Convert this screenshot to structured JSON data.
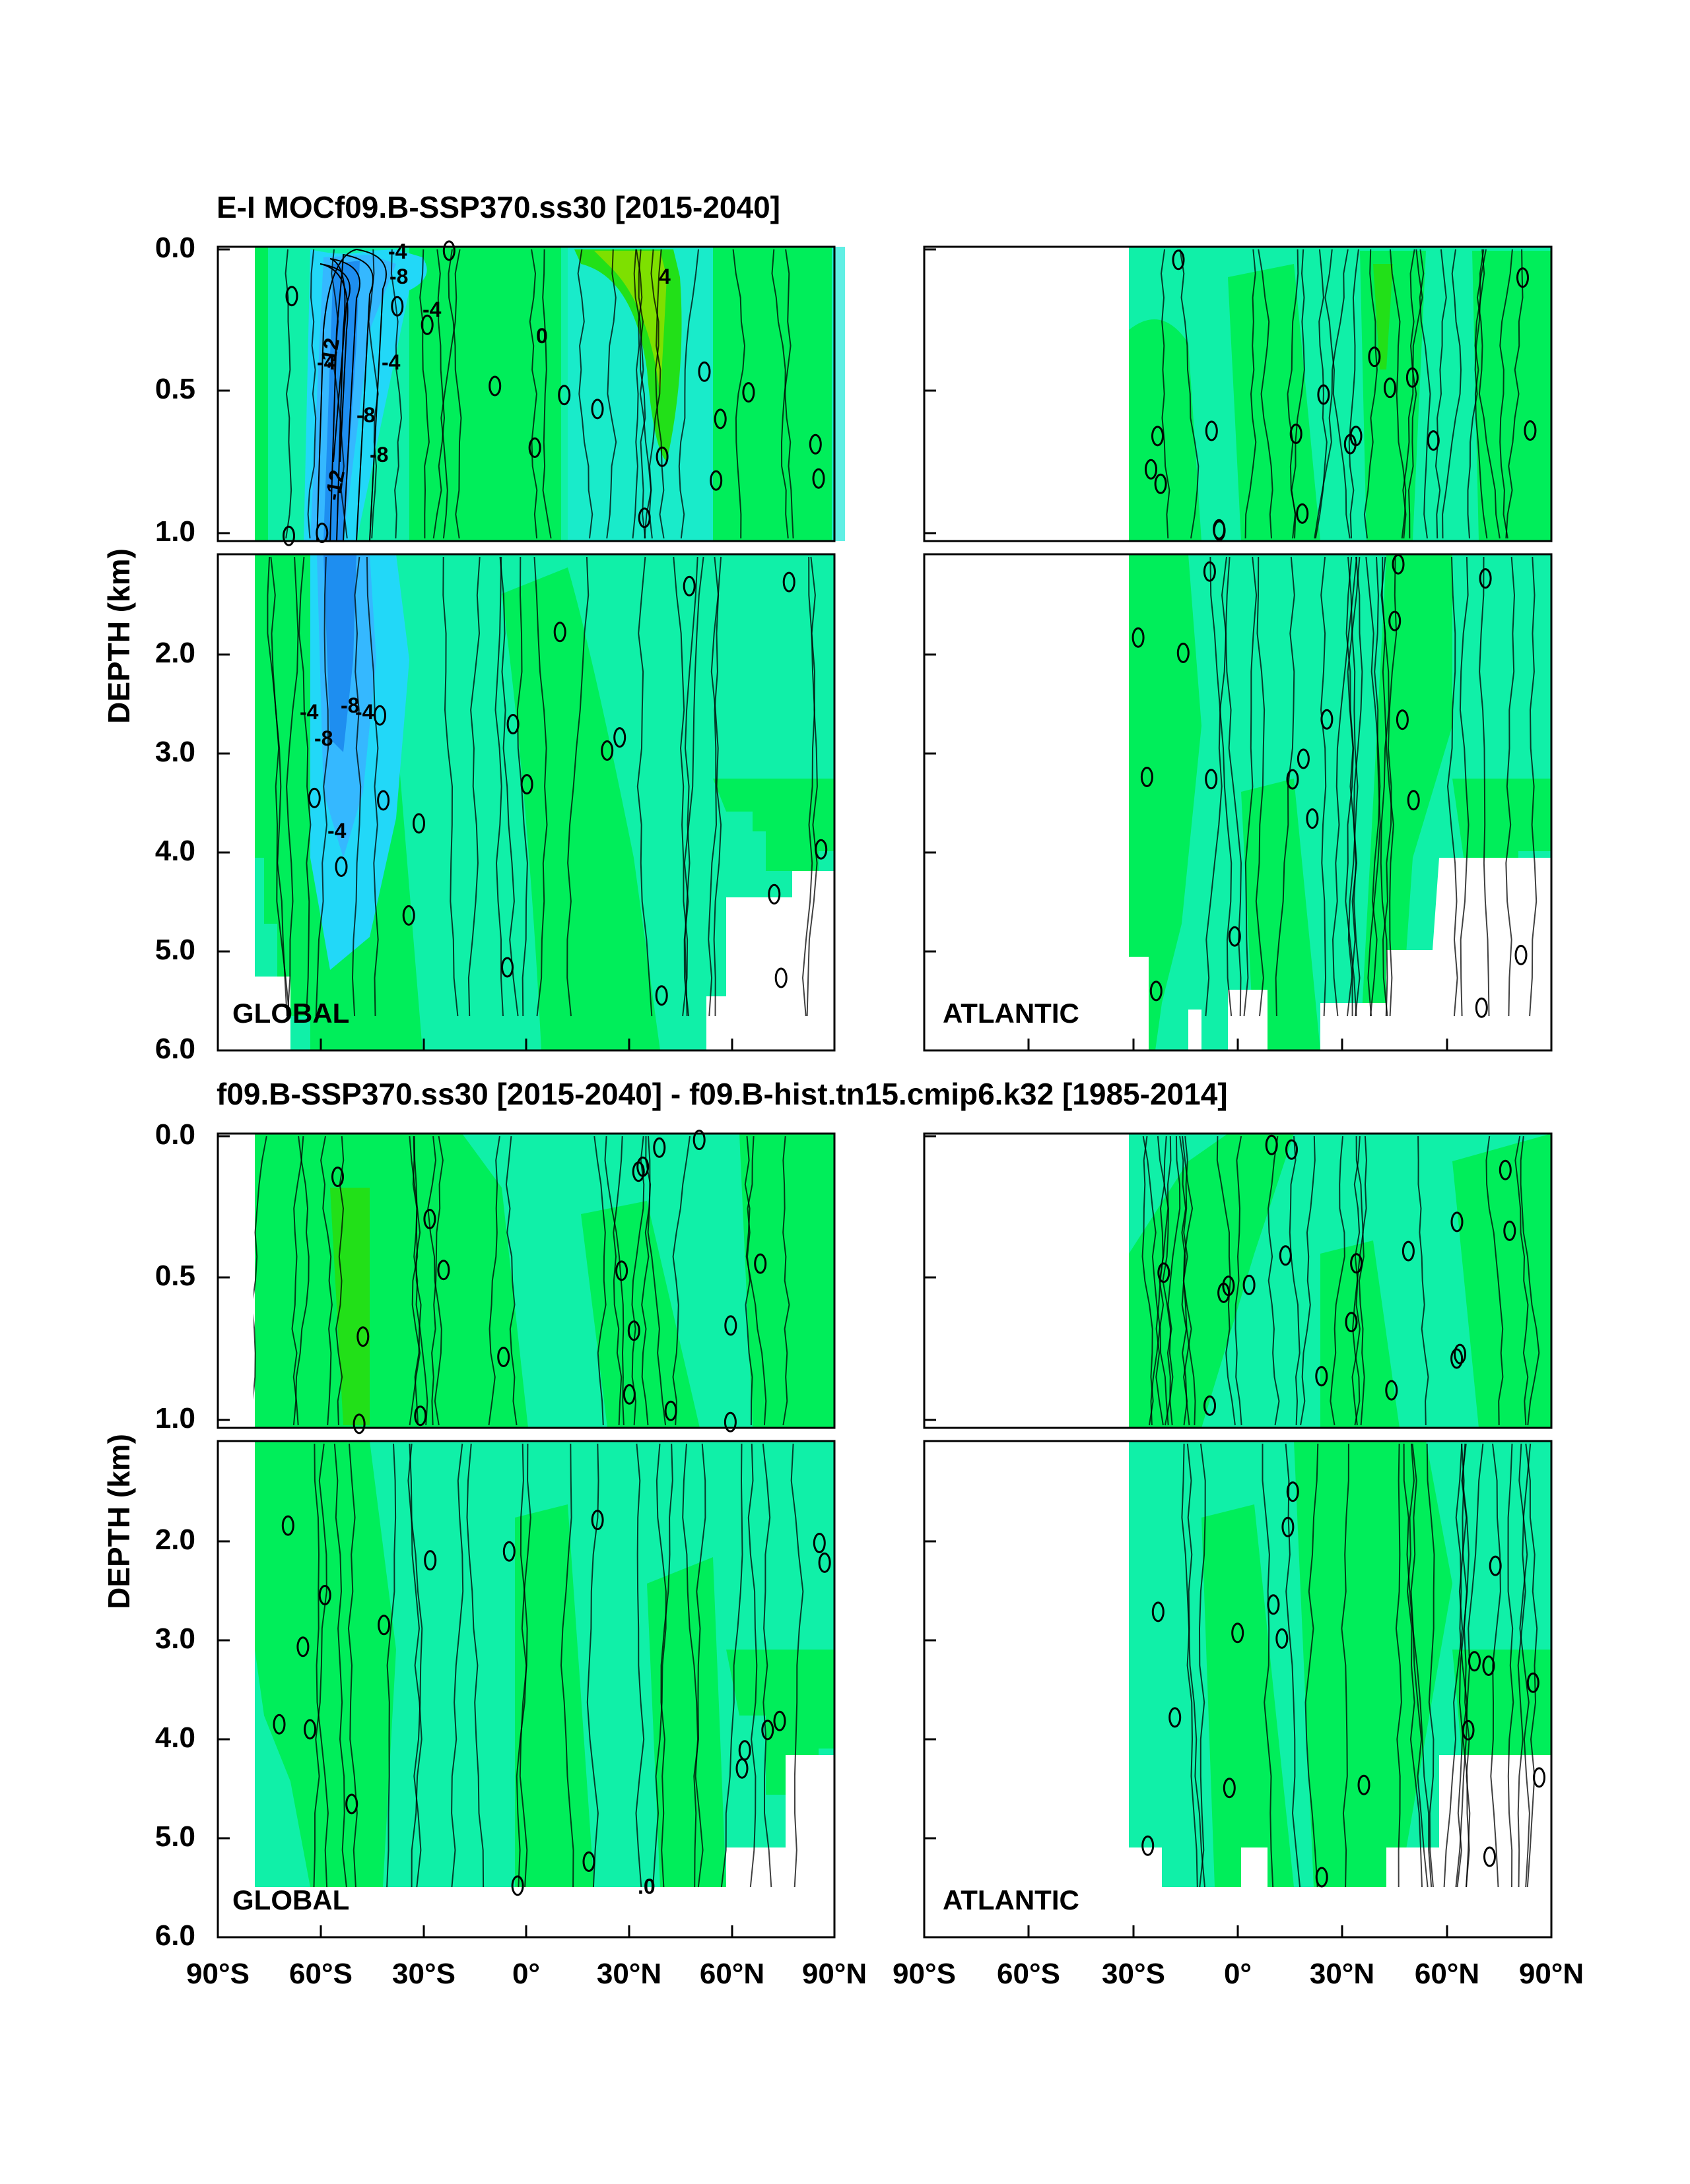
{
  "chart_data": [
    {
      "type": "contour",
      "title": "E-I MOCf09.B-SSP370.ss30 [2015-2040]",
      "ylabel": "DEPTH (km)",
      "x_ticks": [
        "90°S",
        "60°S",
        "30°S",
        "0°",
        "30°N",
        "60°N",
        "90°N"
      ],
      "xlim": [
        -90,
        90
      ],
      "y_ticks_upper": [
        "0.0",
        "0.5",
        "1.0"
      ],
      "y_ticks_lower": [
        "2.0",
        "3.0",
        "4.0",
        "5.0",
        "6.0"
      ],
      "ylim": [
        0,
        6
      ],
      "panels": [
        {
          "label": "GLOBAL",
          "contour_labels": [
            "-4",
            "-8",
            "-12",
            "-4",
            "-8",
            "-12",
            "-4",
            "-8",
            "-4",
            "4",
            "0",
            "-4",
            "-8",
            "-4",
            "-8",
            "-4"
          ]
        },
        {
          "label": "ATLANTIC",
          "contour_labels": []
        }
      ]
    },
    {
      "type": "contour",
      "title": "f09.B-SSP370.ss30 [2015-2040] - f09.B-hist.tn15.cmip6.k32 [1985-2014]",
      "ylabel": "DEPTH (km)",
      "x_ticks": [
        "90°S",
        "60°S",
        "30°S",
        "0°",
        "30°N",
        "60°N",
        "90°N"
      ],
      "xlim": [
        -90,
        90
      ],
      "y_ticks_upper": [
        "0.0",
        "0.5",
        "1.0"
      ],
      "y_ticks_lower": [
        "2.0",
        "3.0",
        "4.0",
        "5.0",
        "6.0"
      ],
      "ylim": [
        0,
        6
      ],
      "panels": [
        {
          "label": "GLOBAL",
          "contour_labels": [
            ".0"
          ]
        },
        {
          "label": "ATLANTIC",
          "contour_labels": []
        }
      ]
    }
  ],
  "colors": {
    "deep_blue": "#1e8ef0",
    "blue": "#35b8ff",
    "cyan": "#22d8f8",
    "aqua": "#1ee8d8",
    "teal_green": "#10f0a8",
    "green": "#00ee5a",
    "lime": "#22e018",
    "yellow_green": "#7ee000"
  }
}
